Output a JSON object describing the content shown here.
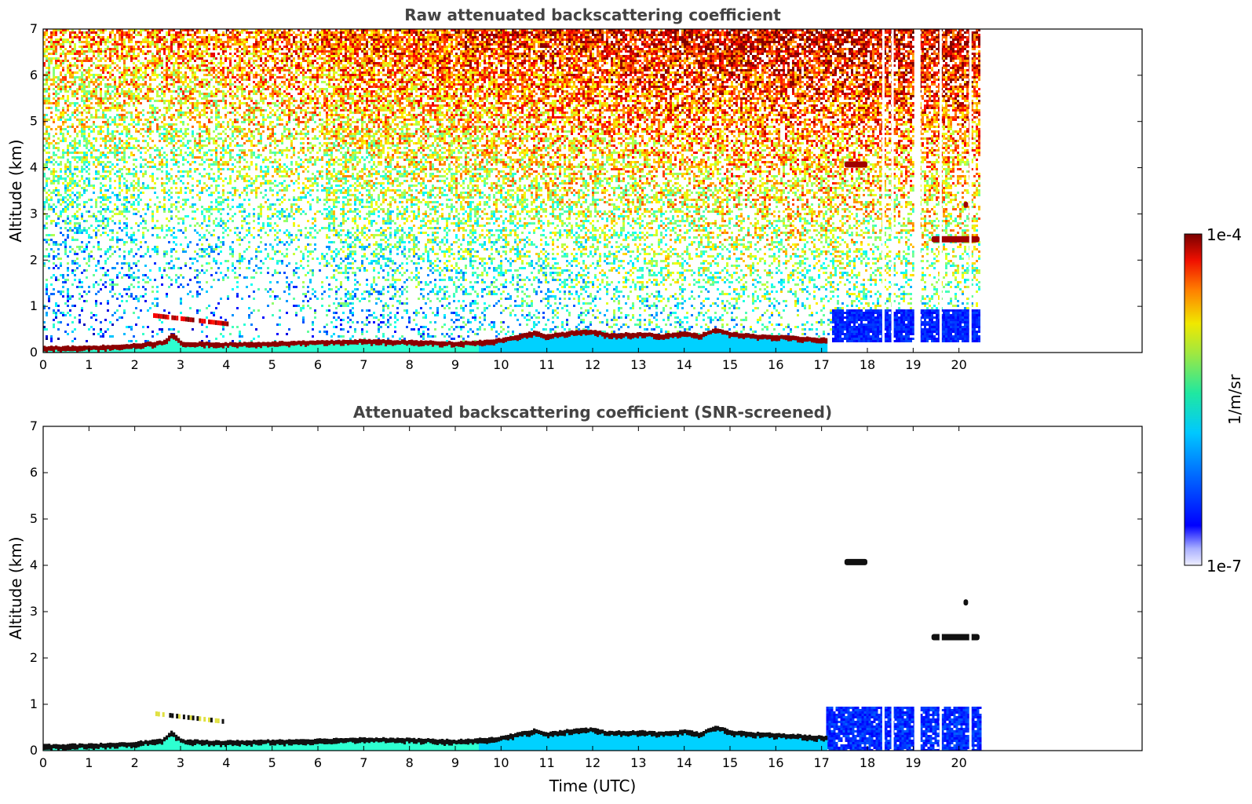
{
  "chart_data": [
    {
      "type": "heatmap",
      "title": "Raw attenuated backscattering coefficient",
      "xlabel": "",
      "ylabel": "Altitude (km)",
      "xlim": [
        0,
        24
      ],
      "ylim": [
        0,
        7
      ],
      "xticks": [
        0,
        1,
        2,
        3,
        4,
        5,
        6,
        7,
        8,
        9,
        10,
        11,
        12,
        13,
        14,
        15,
        16,
        17,
        18,
        19,
        20
      ],
      "yticks": [
        0,
        1,
        2,
        3,
        4,
        5,
        6,
        7
      ],
      "data_end_time": 20.45,
      "boundary_layer_top": [
        [
          0,
          0.12
        ],
        [
          1,
          0.13
        ],
        [
          2,
          0.18
        ],
        [
          2.6,
          0.24
        ],
        [
          2.8,
          0.42
        ],
        [
          3,
          0.22
        ],
        [
          4,
          0.2
        ],
        [
          5,
          0.22
        ],
        [
          6,
          0.24
        ],
        [
          7,
          0.27
        ],
        [
          8,
          0.25
        ],
        [
          9,
          0.22
        ],
        [
          9.7,
          0.26
        ],
        [
          10,
          0.3
        ],
        [
          10.7,
          0.45
        ],
        [
          11,
          0.38
        ],
        [
          11.5,
          0.45
        ],
        [
          12,
          0.48
        ],
        [
          12.3,
          0.4
        ],
        [
          13,
          0.42
        ],
        [
          13.5,
          0.38
        ],
        [
          14,
          0.44
        ],
        [
          14.3,
          0.38
        ],
        [
          14.7,
          0.52
        ],
        [
          15,
          0.42
        ],
        [
          15.5,
          0.38
        ],
        [
          16,
          0.36
        ],
        [
          17,
          0.3
        ]
      ],
      "aerosol_layer": {
        "x": [
          2.4,
          4.0
        ],
        "y": [
          0.8,
          0.62
        ]
      },
      "clouds": [
        {
          "x": [
            17.5,
            18.0
          ],
          "altitude": 4.07
        },
        {
          "x": [
            19.4,
            20.45
          ],
          "altitude": 2.45
        },
        {
          "x": [
            20.1,
            20.2
          ],
          "altitude": 3.2
        }
      ],
      "missing_profiles": [
        18.35,
        18.55,
        19.05,
        19.6,
        20.25
      ],
      "colorbar": {
        "label": "1/m/sr",
        "min_label": "1e-7",
        "max_label": "1e-4",
        "scale": "log"
      }
    },
    {
      "type": "heatmap",
      "title": "Attenuated backscattering coefficient (SNR-screened)",
      "xlabel": "Time (UTC)",
      "ylabel": "Altitude (km)",
      "xlim": [
        0,
        24
      ],
      "ylim": [
        0,
        7
      ],
      "xticks": [
        0,
        1,
        2,
        3,
        4,
        5,
        6,
        7,
        8,
        9,
        10,
        11,
        12,
        13,
        14,
        15,
        16,
        17,
        18,
        19,
        20
      ],
      "yticks": [
        0,
        1,
        2,
        3,
        4,
        5,
        6,
        7
      ]
    }
  ]
}
